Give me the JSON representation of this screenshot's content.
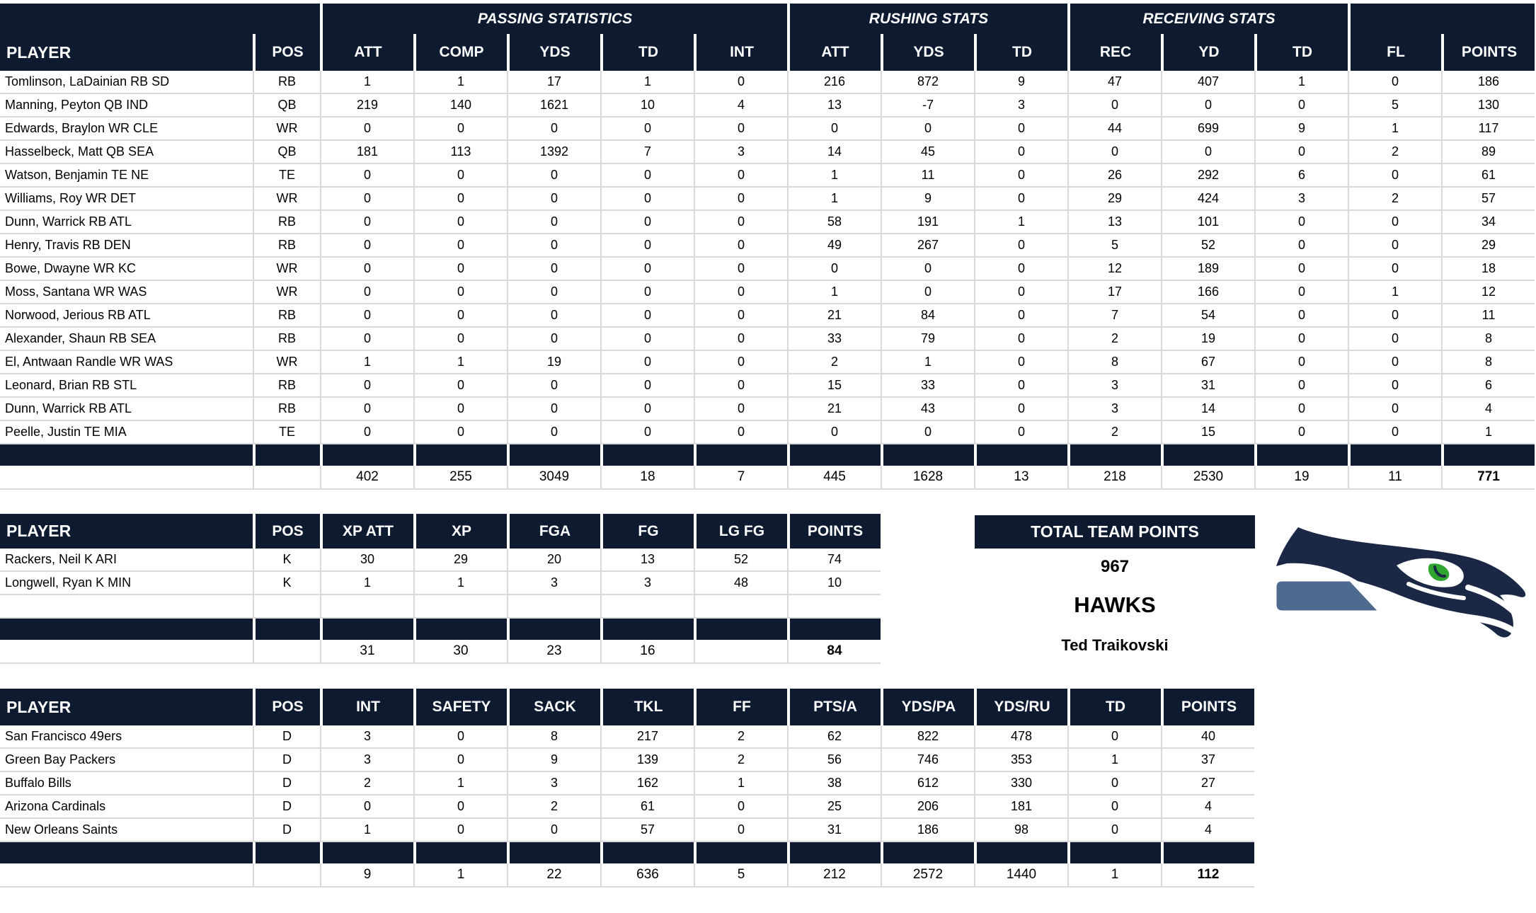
{
  "colors": {
    "header_navy": "#0d1a30",
    "gridline": "#d9d9d9",
    "logo_navy": "#1b2845",
    "logo_steel": "#4f6a8f",
    "logo_green": "#2fa42e"
  },
  "offense_table": {
    "group_row": [
      {
        "label": "",
        "span": 2
      },
      {
        "label": "PASSING STATISTICS",
        "span": 5
      },
      {
        "label": "RUSHING STATS",
        "span": 3
      },
      {
        "label": "RECEIVING STATS",
        "span": 3
      },
      {
        "label": "",
        "span": 2
      }
    ],
    "columns": [
      "PLAYER",
      "POS",
      "ATT",
      "COMP",
      "YDS",
      "TD",
      "INT",
      "ATT",
      "YDS",
      "TD",
      "REC",
      "YD",
      "TD",
      "FL",
      "POINTS"
    ],
    "rows": [
      {
        "player": "Tomlinson, LaDainian RB SD",
        "pos": "RB",
        "stats": [
          "1",
          "1",
          "17",
          "1",
          "0",
          "216",
          "872",
          "9",
          "47",
          "407",
          "1",
          "0",
          "186"
        ]
      },
      {
        "player": "Manning, Peyton QB IND",
        "pos": "QB",
        "stats": [
          "219",
          "140",
          "1621",
          "10",
          "4",
          "13",
          "-7",
          "3",
          "0",
          "0",
          "0",
          "5",
          "130"
        ]
      },
      {
        "player": "Edwards, Braylon WR CLE",
        "pos": "WR",
        "stats": [
          "0",
          "0",
          "0",
          "0",
          "0",
          "0",
          "0",
          "0",
          "44",
          "699",
          "9",
          "1",
          "117"
        ]
      },
      {
        "player": "Hasselbeck, Matt QB SEA",
        "pos": "QB",
        "stats": [
          "181",
          "113",
          "1392",
          "7",
          "3",
          "14",
          "45",
          "0",
          "0",
          "0",
          "0",
          "2",
          "89"
        ]
      },
      {
        "player": "Watson, Benjamin TE NE",
        "pos": "TE",
        "stats": [
          "0",
          "0",
          "0",
          "0",
          "0",
          "1",
          "11",
          "0",
          "26",
          "292",
          "6",
          "0",
          "61"
        ]
      },
      {
        "player": "Williams, Roy WR DET",
        "pos": "WR",
        "stats": [
          "0",
          "0",
          "0",
          "0",
          "0",
          "1",
          "9",
          "0",
          "29",
          "424",
          "3",
          "2",
          "57"
        ]
      },
      {
        "player": "Dunn, Warrick RB ATL",
        "pos": "RB",
        "stats": [
          "0",
          "0",
          "0",
          "0",
          "0",
          "58",
          "191",
          "1",
          "13",
          "101",
          "0",
          "0",
          "34"
        ]
      },
      {
        "player": "Henry, Travis RB DEN",
        "pos": "RB",
        "stats": [
          "0",
          "0",
          "0",
          "0",
          "0",
          "49",
          "267",
          "0",
          "5",
          "52",
          "0",
          "0",
          "29"
        ]
      },
      {
        "player": "Bowe, Dwayne WR KC",
        "pos": "WR",
        "stats": [
          "0",
          "0",
          "0",
          "0",
          "0",
          "0",
          "0",
          "0",
          "12",
          "189",
          "0",
          "0",
          "18"
        ]
      },
      {
        "player": "Moss, Santana WR WAS",
        "pos": "WR",
        "stats": [
          "0",
          "0",
          "0",
          "0",
          "0",
          "1",
          "0",
          "0",
          "17",
          "166",
          "0",
          "1",
          "12"
        ]
      },
      {
        "player": "Norwood, Jerious RB ATL",
        "pos": "RB",
        "stats": [
          "0",
          "0",
          "0",
          "0",
          "0",
          "21",
          "84",
          "0",
          "7",
          "54",
          "0",
          "0",
          "11"
        ]
      },
      {
        "player": "Alexander, Shaun RB SEA",
        "pos": "RB",
        "stats": [
          "0",
          "0",
          "0",
          "0",
          "0",
          "33",
          "79",
          "0",
          "2",
          "19",
          "0",
          "0",
          "8"
        ]
      },
      {
        "player": "El, Antwaan Randle WR WAS",
        "pos": "WR",
        "stats": [
          "1",
          "1",
          "19",
          "0",
          "0",
          "2",
          "1",
          "0",
          "8",
          "67",
          "0",
          "0",
          "8"
        ]
      },
      {
        "player": "Leonard, Brian RB STL",
        "pos": "RB",
        "stats": [
          "0",
          "0",
          "0",
          "0",
          "0",
          "15",
          "33",
          "0",
          "3",
          "31",
          "0",
          "0",
          "6"
        ]
      },
      {
        "player": "Dunn, Warrick RB ATL",
        "pos": "RB",
        "stats": [
          "0",
          "0",
          "0",
          "0",
          "0",
          "21",
          "43",
          "0",
          "3",
          "14",
          "0",
          "0",
          "4"
        ]
      },
      {
        "player": "Peelle, Justin TE MIA",
        "pos": "TE",
        "stats": [
          "0",
          "0",
          "0",
          "0",
          "0",
          "0",
          "0",
          "0",
          "2",
          "15",
          "0",
          "0",
          "1"
        ]
      }
    ],
    "blank_rows": 0,
    "totals": [
      "402",
      "255",
      "3049",
      "18",
      "7",
      "445",
      "1628",
      "13",
      "218",
      "2530",
      "19",
      "11",
      "771"
    ]
  },
  "kicker_table": {
    "columns": [
      "PLAYER",
      "POS",
      "XP ATT",
      "XP",
      "FGA",
      "FG",
      "LG FG",
      "POINTS"
    ],
    "rows": [
      {
        "player": "Rackers, Neil K ARI",
        "pos": "K",
        "stats": [
          "30",
          "29",
          "20",
          "13",
          "52",
          "74"
        ]
      },
      {
        "player": "Longwell, Ryan K MIN",
        "pos": "K",
        "stats": [
          "1",
          "1",
          "3",
          "3",
          "48",
          "10"
        ]
      }
    ],
    "blank_rows": 1,
    "totals": [
      "31",
      "30",
      "23",
      "16",
      "",
      "84"
    ]
  },
  "defense_table": {
    "columns": [
      "PLAYER",
      "POS",
      "INT",
      "SAFETY",
      "SACK",
      "TKL",
      "FF",
      "PTS/A",
      "YDS/PA",
      "YDS/RU",
      "TD",
      "POINTS"
    ],
    "rows": [
      {
        "player": "San Francisco 49ers",
        "pos": "D",
        "stats": [
          "3",
          "0",
          "8",
          "217",
          "2",
          "62",
          "822",
          "478",
          "0",
          "40"
        ]
      },
      {
        "player": "Green Bay Packers",
        "pos": "D",
        "stats": [
          "3",
          "0",
          "9",
          "139",
          "2",
          "56",
          "746",
          "353",
          "1",
          "37"
        ]
      },
      {
        "player": "Buffalo Bills",
        "pos": "D",
        "stats": [
          "2",
          "1",
          "3",
          "162",
          "1",
          "38",
          "612",
          "330",
          "0",
          "27"
        ]
      },
      {
        "player": "Arizona Cardinals",
        "pos": "D",
        "stats": [
          "0",
          "0",
          "2",
          "61",
          "0",
          "25",
          "206",
          "181",
          "0",
          "4"
        ]
      },
      {
        "player": "New Orleans Saints",
        "pos": "D",
        "stats": [
          "1",
          "0",
          "0",
          "57",
          "0",
          "31",
          "186",
          "98",
          "0",
          "4"
        ]
      }
    ],
    "blank_rows": 0,
    "totals": [
      "9",
      "1",
      "22",
      "636",
      "5",
      "212",
      "2572",
      "1440",
      "1",
      "112"
    ]
  },
  "team_panel": {
    "title": "TOTAL TEAM POINTS",
    "points": "967",
    "team_name": "HAWKS",
    "owner": "Ted Traikovski"
  }
}
